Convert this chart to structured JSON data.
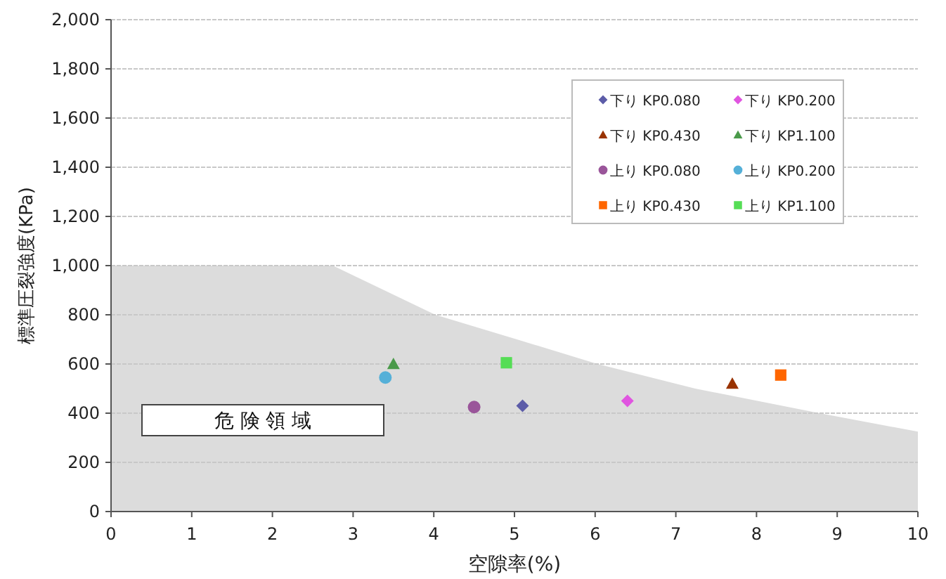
{
  "chart_data": {
    "type": "scatter",
    "xlabel": "空隙率(%)",
    "ylabel": "標準圧裂強度(KPa)",
    "xlim": [
      0,
      10
    ],
    "xticks": [
      0,
      1,
      2,
      3,
      4,
      5,
      6,
      7,
      8,
      9,
      10
    ],
    "ylim": [
      0,
      2000
    ],
    "yticks": [
      {
        "value": 0,
        "label": "0"
      },
      {
        "value": 200,
        "label": "200"
      },
      {
        "value": 400,
        "label": "400"
      },
      {
        "value": 600,
        "label": "600"
      },
      {
        "value": 800,
        "label": "800"
      },
      {
        "value": 1000,
        "label": "1,000"
      },
      {
        "value": 1200,
        "label": "1,200"
      },
      {
        "value": 1400,
        "label": "1,400"
      },
      {
        "value": 1600,
        "label": "1,600"
      },
      {
        "value": 1800,
        "label": "1,800"
      },
      {
        "value": 2000,
        "label": "2,000"
      }
    ],
    "grid": "y",
    "legend": "top right",
    "annotations": [
      "危 険 領 域"
    ],
    "series": [
      {
        "type": "area",
        "color": "#dcdcdc",
        "x": [
          0,
          2.75,
          4.02,
          5.03,
          6.03,
          7.24,
          8.78,
          10
        ],
        "values": [
          1000,
          1000,
          800,
          700,
          600,
          500,
          400,
          325
        ]
      },
      {
        "name": "下り KP0.080",
        "color": "#5c5ca8",
        "marker": "diamond",
        "x": [
          5.1
        ],
        "values": [
          430
        ]
      },
      {
        "name": "下り KP0.200",
        "color": "#e055e0",
        "marker": "diamond",
        "x": [
          6.4
        ],
        "values": [
          450
        ]
      },
      {
        "name": "下り KP0.430",
        "color": "#993300",
        "marker": "triangle",
        "x": [
          7.7
        ],
        "values": [
          520
        ]
      },
      {
        "name": "下り KP1.100",
        "color": "#4a9a4a",
        "marker": "triangle",
        "x": [
          3.5
        ],
        "values": [
          600
        ]
      },
      {
        "name": "上り KP0.080",
        "color": "#9a559a",
        "marker": "circle",
        "x": [
          4.5
        ],
        "values": [
          425
        ]
      },
      {
        "name": "上り KP0.200",
        "color": "#55b0d8",
        "marker": "circle",
        "x": [
          3.4
        ],
        "values": [
          545
        ]
      },
      {
        "name": "上り KP0.430",
        "color": "#ff6600",
        "marker": "square",
        "x": [
          8.3
        ],
        "values": [
          555
        ]
      },
      {
        "name": "上り KP1.100",
        "color": "#55dd55",
        "marker": "square",
        "x": [
          4.9
        ],
        "values": [
          605
        ]
      }
    ]
  }
}
